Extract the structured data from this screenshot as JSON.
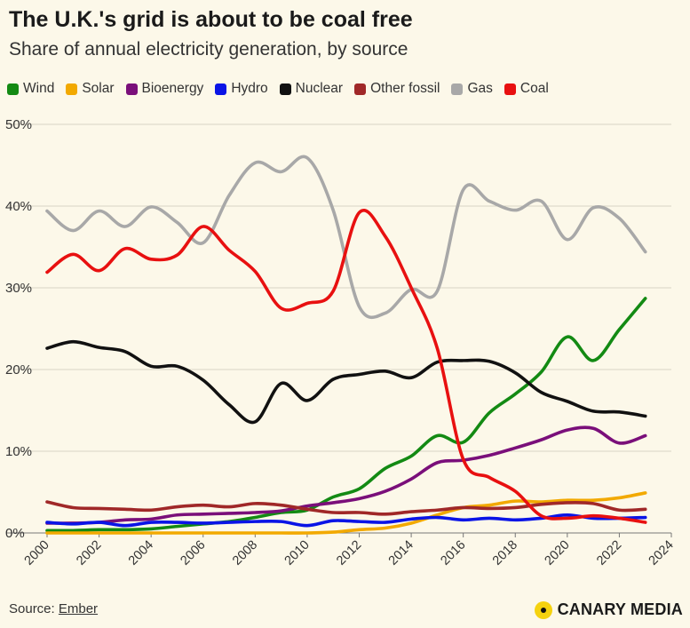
{
  "header": {
    "title": "The U.K.'s grid is about to be coal free",
    "subtitle": "Share of annual electricity generation, by source"
  },
  "footer": {
    "source_prefix": "Source:",
    "source_name": "Ember",
    "brand": "CANARY MEDIA"
  },
  "chart_data": {
    "type": "line",
    "title": "The U.K.'s grid is about to be coal free",
    "subtitle": "Share of annual electricity generation, by source",
    "xlabel": "",
    "ylabel": "",
    "xlim": [
      2000,
      2024
    ],
    "ylim": [
      0,
      50
    ],
    "x_ticks": [
      2000,
      2002,
      2004,
      2006,
      2008,
      2010,
      2012,
      2014,
      2016,
      2018,
      2020,
      2022,
      2024
    ],
    "y_ticks": [
      0,
      10,
      20,
      30,
      40,
      50
    ],
    "y_tick_labels": [
      "0%",
      "10%",
      "20%",
      "30%",
      "40%",
      "50%"
    ],
    "grid": true,
    "legend_position": "top",
    "x": [
      2000,
      2001,
      2002,
      2003,
      2004,
      2005,
      2006,
      2007,
      2008,
      2009,
      2010,
      2011,
      2012,
      2013,
      2014,
      2015,
      2016,
      2017,
      2018,
      2019,
      2020,
      2021,
      2022,
      2023
    ],
    "series": [
      {
        "name": "Wind",
        "color": "#138a13",
        "values": [
          0.3,
          0.3,
          0.4,
          0.4,
          0.5,
          0.8,
          1.1,
          1.4,
          1.9,
          2.5,
          2.8,
          4.4,
          5.4,
          7.9,
          9.4,
          11.9,
          11.1,
          14.7,
          17.0,
          19.7,
          24.0,
          21.1,
          24.9,
          28.7
        ]
      },
      {
        "name": "Solar",
        "color": "#f2a900",
        "values": [
          0.0,
          0.0,
          0.0,
          0.0,
          0.0,
          0.0,
          0.0,
          0.0,
          0.0,
          0.0,
          0.0,
          0.1,
          0.4,
          0.6,
          1.2,
          2.2,
          3.1,
          3.4,
          3.9,
          3.8,
          4.0,
          4.0,
          4.3,
          4.9
        ]
      },
      {
        "name": "Bioenergy",
        "color": "#7a0f7a",
        "values": [
          1.2,
          1.2,
          1.3,
          1.6,
          1.7,
          2.2,
          2.3,
          2.4,
          2.5,
          2.7,
          3.3,
          3.7,
          4.2,
          5.1,
          6.6,
          8.6,
          8.9,
          9.5,
          10.4,
          11.4,
          12.6,
          12.8,
          11.0,
          11.9
        ]
      },
      {
        "name": "Hydro",
        "color": "#0a14e6",
        "values": [
          1.3,
          1.1,
          1.3,
          0.9,
          1.3,
          1.3,
          1.2,
          1.3,
          1.4,
          1.4,
          0.9,
          1.5,
          1.4,
          1.3,
          1.7,
          1.9,
          1.6,
          1.8,
          1.6,
          1.8,
          2.2,
          1.8,
          1.8,
          1.9
        ]
      },
      {
        "name": "Nuclear",
        "color": "#111111",
        "values": [
          22.6,
          23.4,
          22.7,
          22.2,
          20.4,
          20.4,
          18.7,
          15.7,
          13.6,
          18.3,
          16.2,
          18.8,
          19.4,
          19.8,
          19.0,
          20.9,
          21.1,
          21.0,
          19.6,
          17.2,
          16.1,
          14.9,
          14.8,
          14.3
        ]
      },
      {
        "name": "Other fossil",
        "color": "#a02828",
        "values": [
          3.8,
          3.1,
          3.0,
          2.9,
          2.8,
          3.2,
          3.4,
          3.2,
          3.6,
          3.4,
          2.9,
          2.5,
          2.5,
          2.3,
          2.6,
          2.8,
          3.1,
          3.0,
          3.1,
          3.5,
          3.7,
          3.6,
          2.8,
          2.9
        ]
      },
      {
        "name": "Gas",
        "color": "#a8a8a8",
        "values": [
          39.4,
          37.0,
          39.4,
          37.5,
          39.9,
          38.0,
          35.5,
          41.3,
          45.3,
          44.2,
          45.9,
          39.5,
          27.7,
          26.9,
          29.8,
          29.6,
          42.0,
          40.6,
          39.5,
          40.6,
          35.9,
          39.8,
          38.5,
          34.4
        ]
      },
      {
        "name": "Coal",
        "color": "#e81010",
        "values": [
          31.9,
          34.1,
          32.1,
          34.8,
          33.5,
          34.0,
          37.5,
          34.6,
          32.0,
          27.5,
          28.1,
          29.6,
          39.2,
          36.3,
          30.0,
          22.6,
          9.0,
          6.8,
          5.1,
          2.1,
          1.8,
          2.1,
          1.8,
          1.3
        ]
      }
    ]
  }
}
